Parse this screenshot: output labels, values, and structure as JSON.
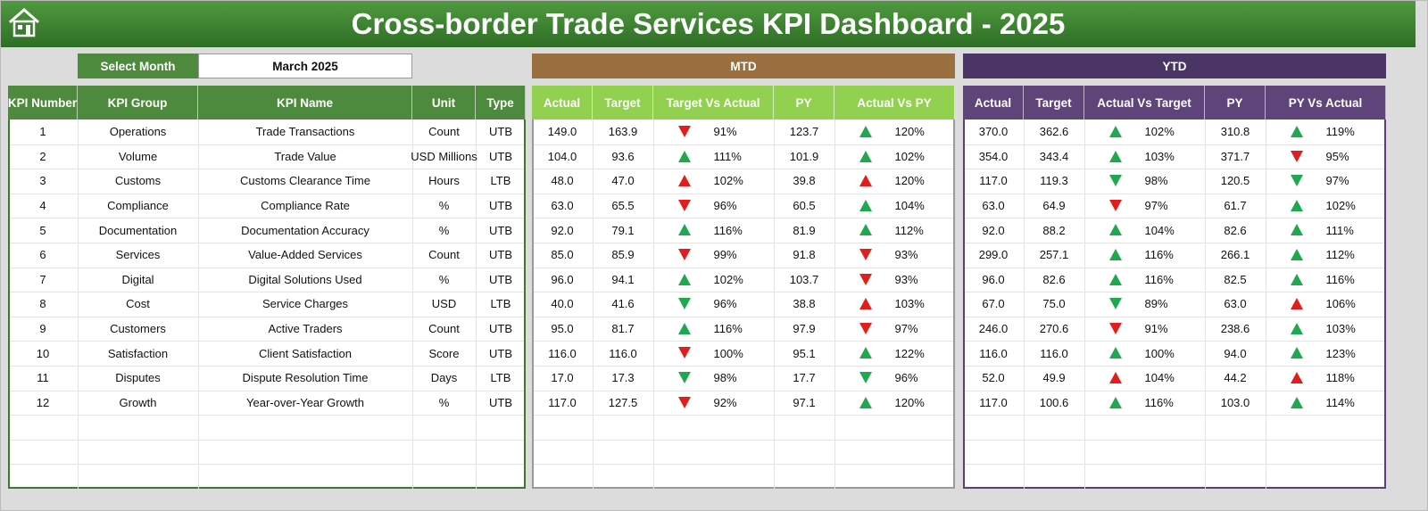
{
  "header": {
    "title": "Cross-border Trade Services KPI Dashboard - 2025"
  },
  "filter": {
    "label": "Select Month",
    "value": "March 2025"
  },
  "sections": {
    "mtd": "MTD",
    "ytd": "YTD"
  },
  "columns": {
    "info": [
      "KPI Number",
      "KPI Group",
      "KPI Name",
      "Unit",
      "Type"
    ],
    "mtd": [
      "Actual",
      "Target",
      "Target Vs Actual",
      "PY",
      "Actual Vs PY"
    ],
    "ytd": [
      "Actual",
      "Target",
      "Actual Vs Target",
      "PY",
      "PY Vs Actual"
    ]
  },
  "rows": [
    {
      "info": [
        "1",
        "Operations",
        "Trade Transactions",
        "Count",
        "UTB"
      ],
      "mtd": [
        "149.0",
        "163.9",
        {
          "text": "91%",
          "arrow": "down",
          "color": "#e31c1c"
        },
        "123.7",
        {
          "text": "120%",
          "arrow": "up",
          "color": "#1fa84f"
        }
      ],
      "ytd": [
        "370.0",
        "362.6",
        {
          "text": "102%",
          "arrow": "up",
          "color": "#1fa84f"
        },
        "310.8",
        {
          "text": "119%",
          "arrow": "up",
          "color": "#1fa84f"
        }
      ]
    },
    {
      "info": [
        "2",
        "Volume",
        "Trade Value",
        "USD Millions",
        "UTB"
      ],
      "mtd": [
        "104.0",
        "93.6",
        {
          "text": "111%",
          "arrow": "up",
          "color": "#1fa84f"
        },
        "101.9",
        {
          "text": "102%",
          "arrow": "up",
          "color": "#1fa84f"
        }
      ],
      "ytd": [
        "354.0",
        "343.4",
        {
          "text": "103%",
          "arrow": "up",
          "color": "#1fa84f"
        },
        "371.7",
        {
          "text": "95%",
          "arrow": "down",
          "color": "#e31c1c"
        }
      ]
    },
    {
      "info": [
        "3",
        "Customs",
        "Customs Clearance Time",
        "Hours",
        "LTB"
      ],
      "mtd": [
        "48.0",
        "47.0",
        {
          "text": "102%",
          "arrow": "up",
          "color": "#e31c1c"
        },
        "39.8",
        {
          "text": "120%",
          "arrow": "up",
          "color": "#e31c1c"
        }
      ],
      "ytd": [
        "117.0",
        "119.3",
        {
          "text": "98%",
          "arrow": "down",
          "color": "#1fa84f"
        },
        "120.5",
        {
          "text": "97%",
          "arrow": "down",
          "color": "#1fa84f"
        }
      ]
    },
    {
      "info": [
        "4",
        "Compliance",
        "Compliance Rate",
        "%",
        "UTB"
      ],
      "mtd": [
        "63.0",
        "65.5",
        {
          "text": "96%",
          "arrow": "down",
          "color": "#e31c1c"
        },
        "60.5",
        {
          "text": "104%",
          "arrow": "up",
          "color": "#1fa84f"
        }
      ],
      "ytd": [
        "63.0",
        "64.9",
        {
          "text": "97%",
          "arrow": "down",
          "color": "#e31c1c"
        },
        "61.7",
        {
          "text": "102%",
          "arrow": "up",
          "color": "#1fa84f"
        }
      ]
    },
    {
      "info": [
        "5",
        "Documentation",
        "Documentation Accuracy",
        "%",
        "UTB"
      ],
      "mtd": [
        "92.0",
        "79.1",
        {
          "text": "116%",
          "arrow": "up",
          "color": "#1fa84f"
        },
        "81.9",
        {
          "text": "112%",
          "arrow": "up",
          "color": "#1fa84f"
        }
      ],
      "ytd": [
        "92.0",
        "88.2",
        {
          "text": "104%",
          "arrow": "up",
          "color": "#1fa84f"
        },
        "82.6",
        {
          "text": "111%",
          "arrow": "up",
          "color": "#1fa84f"
        }
      ]
    },
    {
      "info": [
        "6",
        "Services",
        "Value-Added Services",
        "Count",
        "UTB"
      ],
      "mtd": [
        "85.0",
        "85.9",
        {
          "text": "99%",
          "arrow": "down",
          "color": "#e31c1c"
        },
        "91.8",
        {
          "text": "93%",
          "arrow": "down",
          "color": "#e31c1c"
        }
      ],
      "ytd": [
        "299.0",
        "257.1",
        {
          "text": "116%",
          "arrow": "up",
          "color": "#1fa84f"
        },
        "266.1",
        {
          "text": "112%",
          "arrow": "up",
          "color": "#1fa84f"
        }
      ]
    },
    {
      "info": [
        "7",
        "Digital",
        "Digital Solutions Used",
        "%",
        "UTB"
      ],
      "mtd": [
        "96.0",
        "94.1",
        {
          "text": "102%",
          "arrow": "up",
          "color": "#1fa84f"
        },
        "103.7",
        {
          "text": "93%",
          "arrow": "down",
          "color": "#e31c1c"
        }
      ],
      "ytd": [
        "96.0",
        "82.6",
        {
          "text": "116%",
          "arrow": "up",
          "color": "#1fa84f"
        },
        "82.5",
        {
          "text": "116%",
          "arrow": "up",
          "color": "#1fa84f"
        }
      ]
    },
    {
      "info": [
        "8",
        "Cost",
        "Service Charges",
        "USD",
        "LTB"
      ],
      "mtd": [
        "40.0",
        "41.6",
        {
          "text": "96%",
          "arrow": "down",
          "color": "#1fa84f"
        },
        "38.8",
        {
          "text": "103%",
          "arrow": "up",
          "color": "#e31c1c"
        }
      ],
      "ytd": [
        "67.0",
        "75.0",
        {
          "text": "89%",
          "arrow": "down",
          "color": "#1fa84f"
        },
        "63.0",
        {
          "text": "106%",
          "arrow": "up",
          "color": "#e31c1c"
        }
      ]
    },
    {
      "info": [
        "9",
        "Customers",
        "Active Traders",
        "Count",
        "UTB"
      ],
      "mtd": [
        "95.0",
        "81.7",
        {
          "text": "116%",
          "arrow": "up",
          "color": "#1fa84f"
        },
        "97.9",
        {
          "text": "97%",
          "arrow": "down",
          "color": "#e31c1c"
        }
      ],
      "ytd": [
        "246.0",
        "270.6",
        {
          "text": "91%",
          "arrow": "down",
          "color": "#e31c1c"
        },
        "238.6",
        {
          "text": "103%",
          "arrow": "up",
          "color": "#1fa84f"
        }
      ]
    },
    {
      "info": [
        "10",
        "Satisfaction",
        "Client Satisfaction",
        "Score",
        "UTB"
      ],
      "mtd": [
        "116.0",
        "116.0",
        {
          "text": "100%",
          "arrow": "down",
          "color": "#e31c1c"
        },
        "95.1",
        {
          "text": "122%",
          "arrow": "up",
          "color": "#1fa84f"
        }
      ],
      "ytd": [
        "116.0",
        "116.0",
        {
          "text": "100%",
          "arrow": "up",
          "color": "#1fa84f"
        },
        "94.0",
        {
          "text": "123%",
          "arrow": "up",
          "color": "#1fa84f"
        }
      ]
    },
    {
      "info": [
        "11",
        "Disputes",
        "Dispute Resolution Time",
        "Days",
        "LTB"
      ],
      "mtd": [
        "17.0",
        "17.3",
        {
          "text": "98%",
          "arrow": "down",
          "color": "#1fa84f"
        },
        "17.7",
        {
          "text": "96%",
          "arrow": "down",
          "color": "#1fa84f"
        }
      ],
      "ytd": [
        "52.0",
        "49.9",
        {
          "text": "104%",
          "arrow": "up",
          "color": "#e31c1c"
        },
        "44.2",
        {
          "text": "118%",
          "arrow": "up",
          "color": "#e31c1c"
        }
      ]
    },
    {
      "info": [
        "12",
        "Growth",
        "Year-over-Year Growth",
        "%",
        "UTB"
      ],
      "mtd": [
        "117.0",
        "127.5",
        {
          "text": "92%",
          "arrow": "down",
          "color": "#e31c1c"
        },
        "97.1",
        {
          "text": "120%",
          "arrow": "up",
          "color": "#1fa84f"
        }
      ],
      "ytd": [
        "117.0",
        "100.6",
        {
          "text": "116%",
          "arrow": "up",
          "color": "#1fa84f"
        },
        "103.0",
        {
          "text": "114%",
          "arrow": "up",
          "color": "#1fa84f"
        }
      ]
    }
  ]
}
